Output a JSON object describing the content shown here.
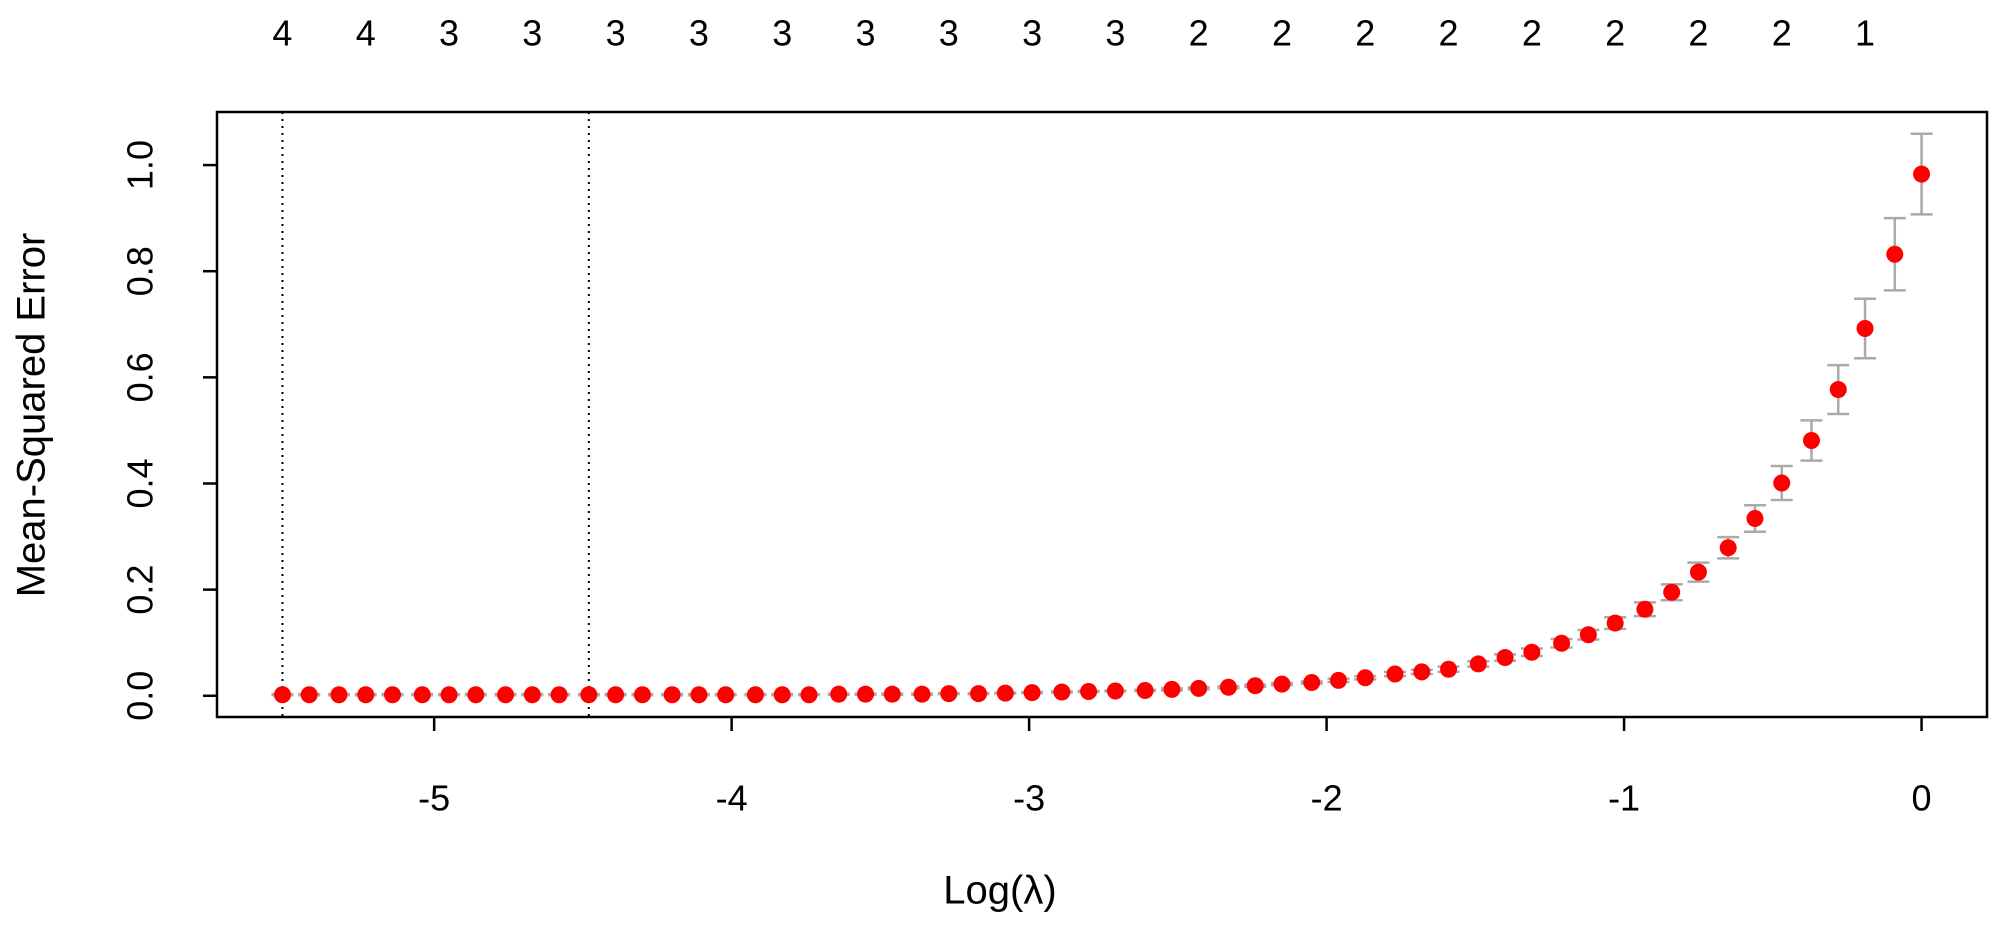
{
  "chart_data": {
    "type": "errorbar_scatter",
    "xlabel": "Log(λ)",
    "ylabel": "Mean-Squared Error",
    "x": [
      -5.51,
      -5.42,
      -5.32,
      -5.23,
      -5.14,
      -5.04,
      -4.95,
      -4.86,
      -4.76,
      -4.67,
      -4.58,
      -4.48,
      -4.39,
      -4.3,
      -4.2,
      -4.11,
      -4.02,
      -3.92,
      -3.83,
      -3.74,
      -3.64,
      -3.55,
      -3.46,
      -3.36,
      -3.27,
      -3.17,
      -3.08,
      -2.99,
      -2.89,
      -2.8,
      -2.71,
      -2.61,
      -2.52,
      -2.43,
      -2.33,
      -2.24,
      -2.15,
      -2.05,
      -1.96,
      -1.87,
      -1.77,
      -1.68,
      -1.59,
      -1.49,
      -1.4,
      -1.31,
      -1.21,
      -1.12,
      -1.03,
      -0.93,
      -0.84,
      -0.75,
      -0.65,
      -0.56,
      -0.47,
      -0.37,
      -0.28,
      -0.19,
      -0.09,
      0.0
    ],
    "values": [
      0.002,
      0.002,
      0.002,
      0.002,
      0.002,
      0.002,
      0.002,
      0.002,
      0.002,
      0.002,
      0.002,
      0.002,
      0.002,
      0.002,
      0.002,
      0.002,
      0.002,
      0.002,
      0.002,
      0.002,
      0.003,
      0.003,
      0.003,
      0.003,
      0.004,
      0.004,
      0.005,
      0.006,
      0.007,
      0.008,
      0.009,
      0.01,
      0.012,
      0.014,
      0.016,
      0.019,
      0.022,
      0.025,
      0.029,
      0.034,
      0.041,
      0.045,
      0.05,
      0.06,
      0.072,
      0.082,
      0.099,
      0.115,
      0.137,
      0.163,
      0.195,
      0.233,
      0.279,
      0.334,
      0.401,
      0.481,
      0.577,
      0.692,
      0.832,
      0.983
    ],
    "error": [
      0.001,
      0.001,
      0.001,
      0.001,
      0.001,
      0.001,
      0.001,
      0.001,
      0.001,
      0.001,
      0.001,
      0.001,
      0.001,
      0.001,
      0.001,
      0.001,
      0.001,
      0.001,
      0.001,
      0.001,
      0.001,
      0.001,
      0.001,
      0.001,
      0.001,
      0.001,
      0.001,
      0.001,
      0.001,
      0.001,
      0.001,
      0.001,
      0.002,
      0.002,
      0.002,
      0.002,
      0.002,
      0.002,
      0.003,
      0.003,
      0.004,
      0.004,
      0.005,
      0.005,
      0.006,
      0.007,
      0.008,
      0.009,
      0.011,
      0.013,
      0.015,
      0.018,
      0.02,
      0.025,
      0.032,
      0.038,
      0.046,
      0.056,
      0.068,
      0.076
    ],
    "color": "#ff0000",
    "error_color": "#aaaaaa",
    "vlines": [
      -5.51,
      -4.48
    ],
    "top_axis": {
      "x": [
        -5.51,
        -5.23,
        -4.95,
        -4.67,
        -4.39,
        -4.11,
        -3.83,
        -3.55,
        -3.27,
        -2.99,
        -2.71,
        -2.43,
        -2.15,
        -1.87,
        -1.59,
        -1.31,
        -1.03,
        -0.75,
        -0.47,
        -0.19
      ],
      "counts": [
        4,
        4,
        3,
        3,
        3,
        3,
        3,
        3,
        3,
        3,
        3,
        2,
        2,
        2,
        2,
        2,
        2,
        2,
        2,
        1
      ]
    },
    "xlim": [
      -5.73,
      0.22
    ],
    "xticks": [
      -5,
      -4,
      -3,
      -2,
      -1,
      0
    ],
    "ylim": [
      -0.04,
      1.1
    ],
    "yticks": [
      {
        "value": 0,
        "label": "0.0"
      },
      {
        "value": 0.2,
        "label": "0.2"
      },
      {
        "value": 0.4,
        "label": "0.4"
      },
      {
        "value": 0.6,
        "label": "0.6"
      },
      {
        "value": 0.8,
        "label": "0.8"
      },
      {
        "value": 1,
        "label": "1.0"
      }
    ]
  }
}
